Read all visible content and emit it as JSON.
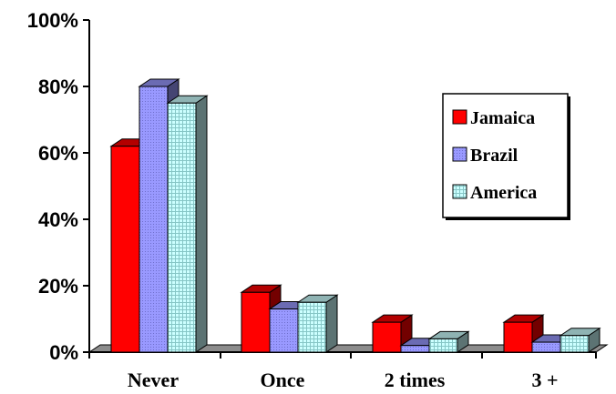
{
  "chart_data": {
    "type": "bar",
    "style": "3d-clustered",
    "categories": [
      "Never",
      "Once",
      "2 times",
      "3 +"
    ],
    "series": [
      {
        "name": "Jamaica",
        "values": [
          62,
          18,
          9,
          9
        ],
        "color": "#ff0000",
        "pattern": "solid"
      },
      {
        "name": "Brazil",
        "values": [
          80,
          13,
          2,
          3
        ],
        "color": "#9999ff",
        "pattern": "fine-dots"
      },
      {
        "name": "America",
        "values": [
          75,
          15,
          4,
          5
        ],
        "color": "#ccffff",
        "pattern": "grid"
      }
    ],
    "y_ticks": [
      "0%",
      "20%",
      "40%",
      "60%",
      "80%",
      "100%"
    ],
    "ylim": [
      0,
      100
    ],
    "grid": false,
    "legend_position": "right"
  }
}
